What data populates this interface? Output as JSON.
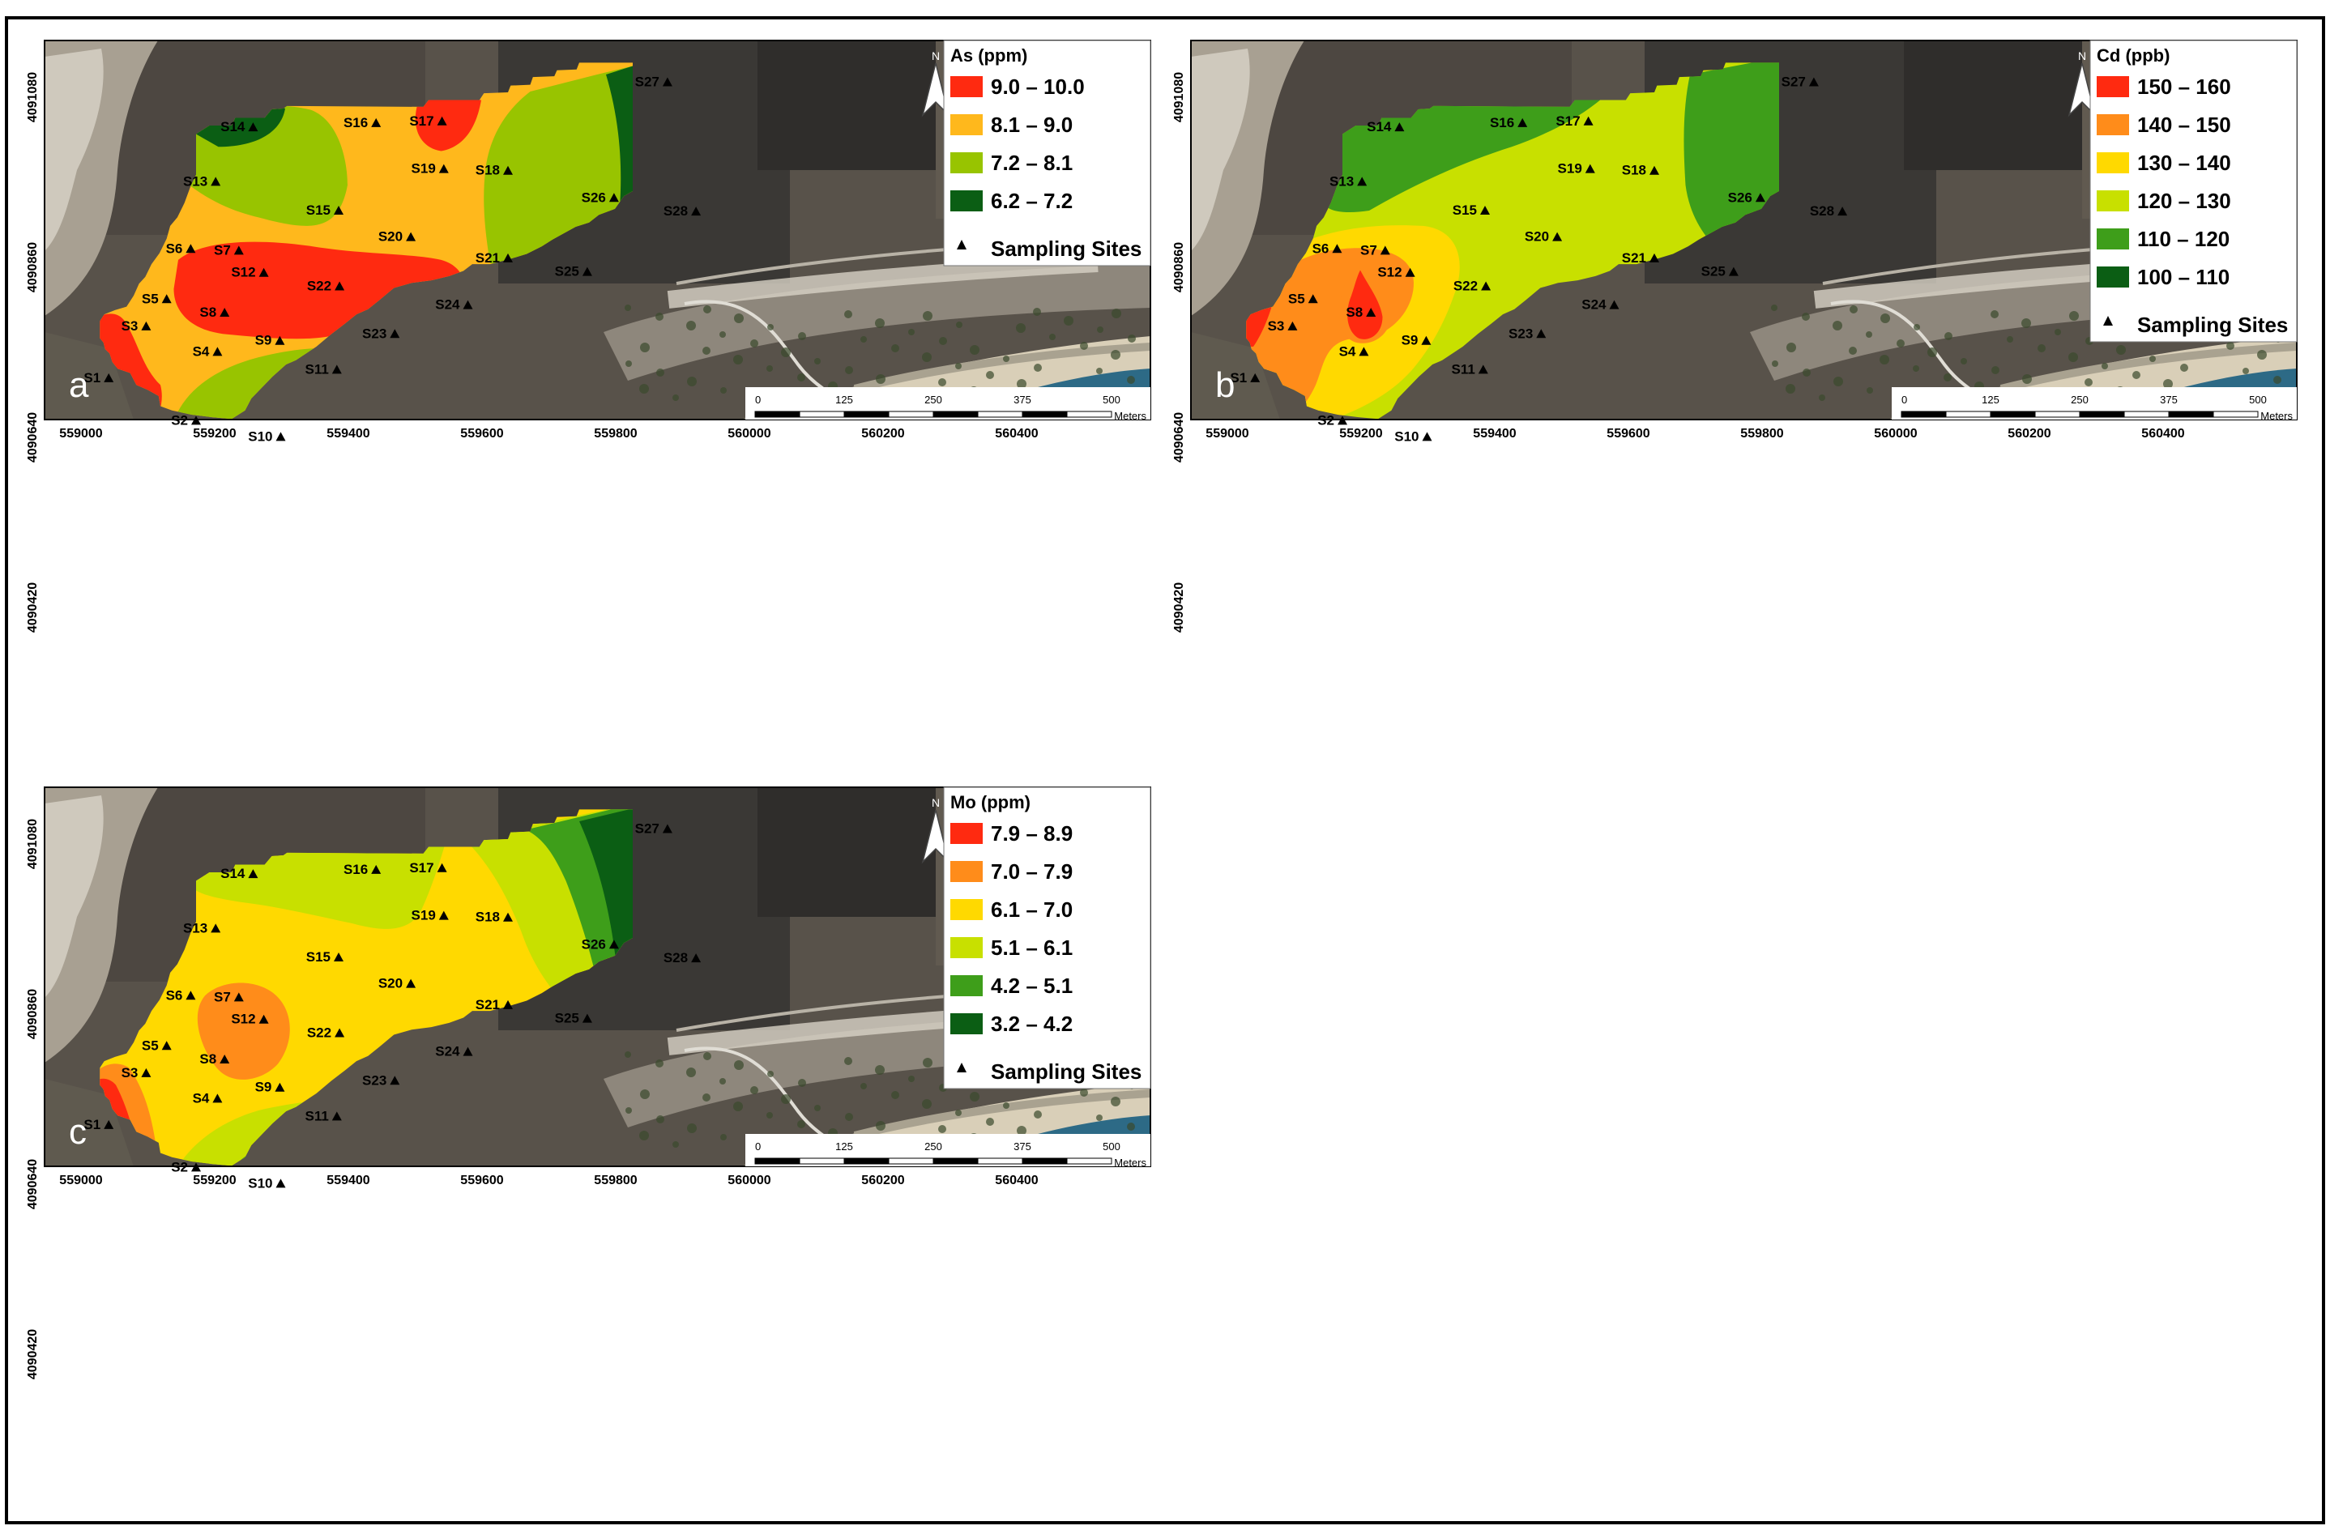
{
  "map": {
    "x_ticks": [
      "559000",
      "559200",
      "559400",
      "559600",
      "559800",
      "560000",
      "560200",
      "560400"
    ],
    "y_ticks": [
      "4091080",
      "4090860",
      "4090640",
      "4090420"
    ],
    "north_label": "N",
    "scale_bar": {
      "ticks": [
        "0",
        "125",
        "250",
        "375",
        "500"
      ],
      "unit": "Meters"
    },
    "sites": [
      "S1",
      "S2",
      "S3",
      "S4",
      "S5",
      "S6",
      "S7",
      "S8",
      "S9",
      "S10",
      "S11",
      "S12",
      "S13",
      "S14",
      "S15",
      "S16",
      "S17",
      "S18",
      "S19",
      "S20",
      "S21",
      "S22",
      "S23",
      "S24",
      "S25",
      "S26",
      "S27",
      "S28"
    ],
    "colors": {
      "red": "#ff2a10",
      "orange": "#ff8c1a",
      "amber": "#ffb81c",
      "yellow": "#ffd900",
      "lightgreen": "#c8e000",
      "yellowgreen": "#98c400",
      "green": "#3e9e1a",
      "darkgreen": "#0b5e14"
    }
  },
  "panels": [
    {
      "letter": "a",
      "legend": {
        "title": "As (ppm)",
        "classes": [
          {
            "label": "9.0 – 10.0",
            "color": "#ff2a10"
          },
          {
            "label": "8.1 – 9.0",
            "color": "#ffb81c"
          },
          {
            "label": "7.2 – 8.1",
            "color": "#98c400"
          },
          {
            "label": "6.2 – 7.2",
            "color": "#0b5e14"
          }
        ],
        "sites_label": "Sampling Sites"
      }
    },
    {
      "letter": "b",
      "legend": {
        "title": "Cd (ppb)",
        "classes": [
          {
            "label": "150 – 160",
            "color": "#ff2a10"
          },
          {
            "label": "140 – 150",
            "color": "#ff8c1a"
          },
          {
            "label": "130 – 140",
            "color": "#ffd900"
          },
          {
            "label": "120  – 130",
            "color": "#c8e000"
          },
          {
            "label": "110 – 120",
            "color": "#3e9e1a"
          },
          {
            "label": "100 – 110",
            "color": "#0b5e14"
          }
        ],
        "sites_label": "Sampling Sites"
      }
    },
    {
      "letter": "c",
      "legend": {
        "title": "Mo (ppm)",
        "classes": [
          {
            "label": "7.9 – 8.9",
            "color": "#ff2a10"
          },
          {
            "label": "7.0 – 7.9",
            "color": "#ff8c1a"
          },
          {
            "label": "6.1 – 7.0",
            "color": "#ffd900"
          },
          {
            "label": "5.1 – 6.1",
            "color": "#c8e000"
          },
          {
            "label": "4.2 – 5.1",
            "color": "#3e9e1a"
          },
          {
            "label": "3.2 – 4.2",
            "color": "#0b5e14"
          }
        ],
        "sites_label": "Sampling Sites"
      }
    }
  ]
}
